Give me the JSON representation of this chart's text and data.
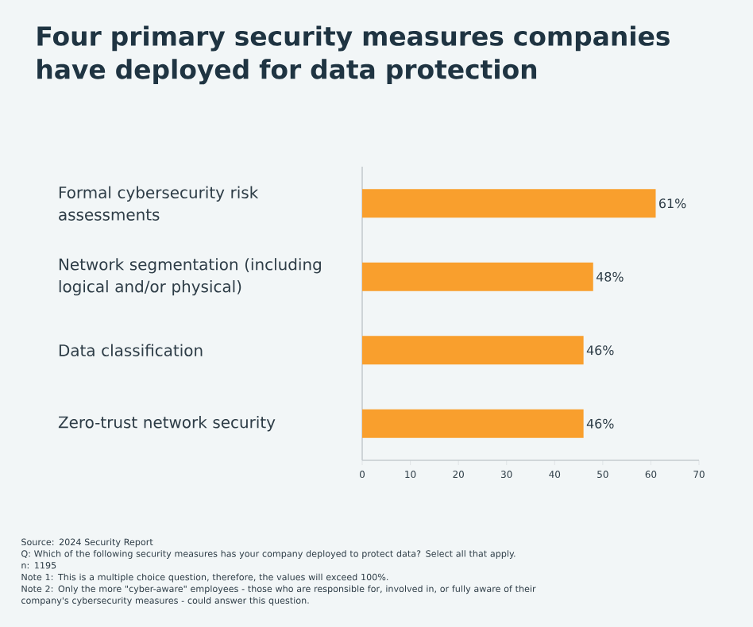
{
  "chart_data": {
    "type": "bar",
    "orientation": "horizontal",
    "title": "Four primary security measures companies have deployed for data protection",
    "categories": [
      "Formal cybersecurity risk assessments",
      "Network segmentation (including logical and/or physical)",
      "Data classification",
      "Zero-trust network security"
    ],
    "values": [
      61,
      48,
      46,
      46
    ],
    "value_labels": [
      "61%",
      "48%",
      "46%",
      "46%"
    ],
    "color": "#f99f2d",
    "xlim": [
      0,
      70
    ],
    "xticks": [
      0,
      10,
      20,
      30,
      40,
      50,
      60,
      70
    ],
    "annotations": [
      "Source: 2024 Security Report",
      "Q: Which of the following security measures has your company deployed to protect data? Select all that apply.",
      "n: 1195",
      "Note 1: This is a multiple choice question, therefore, the values will exceed 100%.",
      "Note 2: Only the more \"cyber-aware\" employees - those who are responsible for, involved in, or fully aware of their company's cybersecurity measures - could answer this question."
    ]
  }
}
